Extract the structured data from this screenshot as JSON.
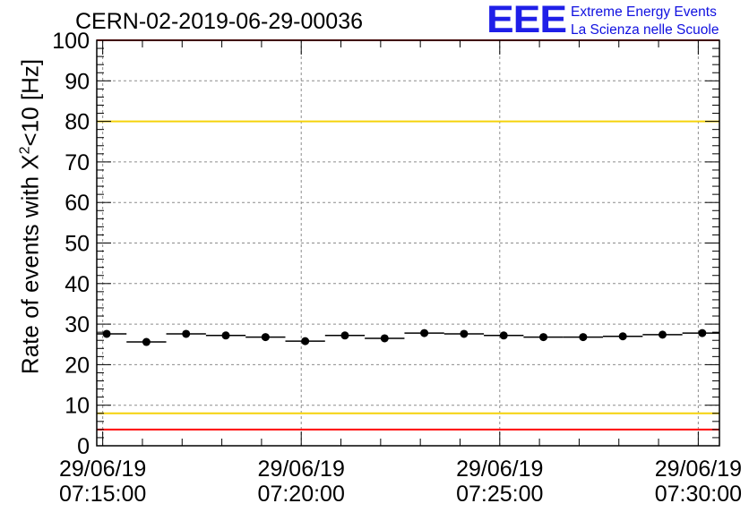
{
  "chart_data": {
    "type": "scatter",
    "title": "CERN-02-2019-06-29-00036",
    "xlabel": "",
    "ylabel_prefix": "Rate of events with X",
    "ylabel_sup": "2",
    "ylabel_suffix": "<10 [Hz]",
    "ylim": [
      0,
      100
    ],
    "y_ticks": [
      0,
      10,
      20,
      30,
      40,
      50,
      60,
      70,
      80,
      90,
      100
    ],
    "x_tick_labels": [
      {
        "date": "29/06/19",
        "time": "07:15:00",
        "t": 0
      },
      {
        "date": "29/06/19",
        "time": "07:20:00",
        "t": 300
      },
      {
        "date": "29/06/19",
        "time": "07:25:00",
        "t": 600
      },
      {
        "date": "29/06/19",
        "time": "07:30:00",
        "t": 900
      }
    ],
    "x_range_seconds": [
      -9,
      932
    ],
    "bin_width_seconds": 60,
    "grid": true,
    "reference_lines": [
      {
        "y": 100,
        "color": "#ff0000"
      },
      {
        "y": 80,
        "color": "#f5d20a"
      },
      {
        "y": 8,
        "color": "#f5d20a"
      },
      {
        "y": 4,
        "color": "#ff0000"
      }
    ],
    "points": [
      {
        "t": 6,
        "y": 27.6
      },
      {
        "t": 66,
        "y": 25.6
      },
      {
        "t": 126,
        "y": 27.6
      },
      {
        "t": 186,
        "y": 27.2
      },
      {
        "t": 246,
        "y": 26.8
      },
      {
        "t": 306,
        "y": 25.8
      },
      {
        "t": 366,
        "y": 27.2
      },
      {
        "t": 426,
        "y": 26.5
      },
      {
        "t": 486,
        "y": 27.8
      },
      {
        "t": 546,
        "y": 27.6
      },
      {
        "t": 606,
        "y": 27.2
      },
      {
        "t": 666,
        "y": 26.8
      },
      {
        "t": 726,
        "y": 26.8
      },
      {
        "t": 786,
        "y": 27.0
      },
      {
        "t": 846,
        "y": 27.4
      },
      {
        "t": 906,
        "y": 27.8
      }
    ]
  },
  "logo": {
    "mark": "EEE",
    "line1": "Extreme Energy Events",
    "line2": "La Scienza nelle Scuole"
  }
}
